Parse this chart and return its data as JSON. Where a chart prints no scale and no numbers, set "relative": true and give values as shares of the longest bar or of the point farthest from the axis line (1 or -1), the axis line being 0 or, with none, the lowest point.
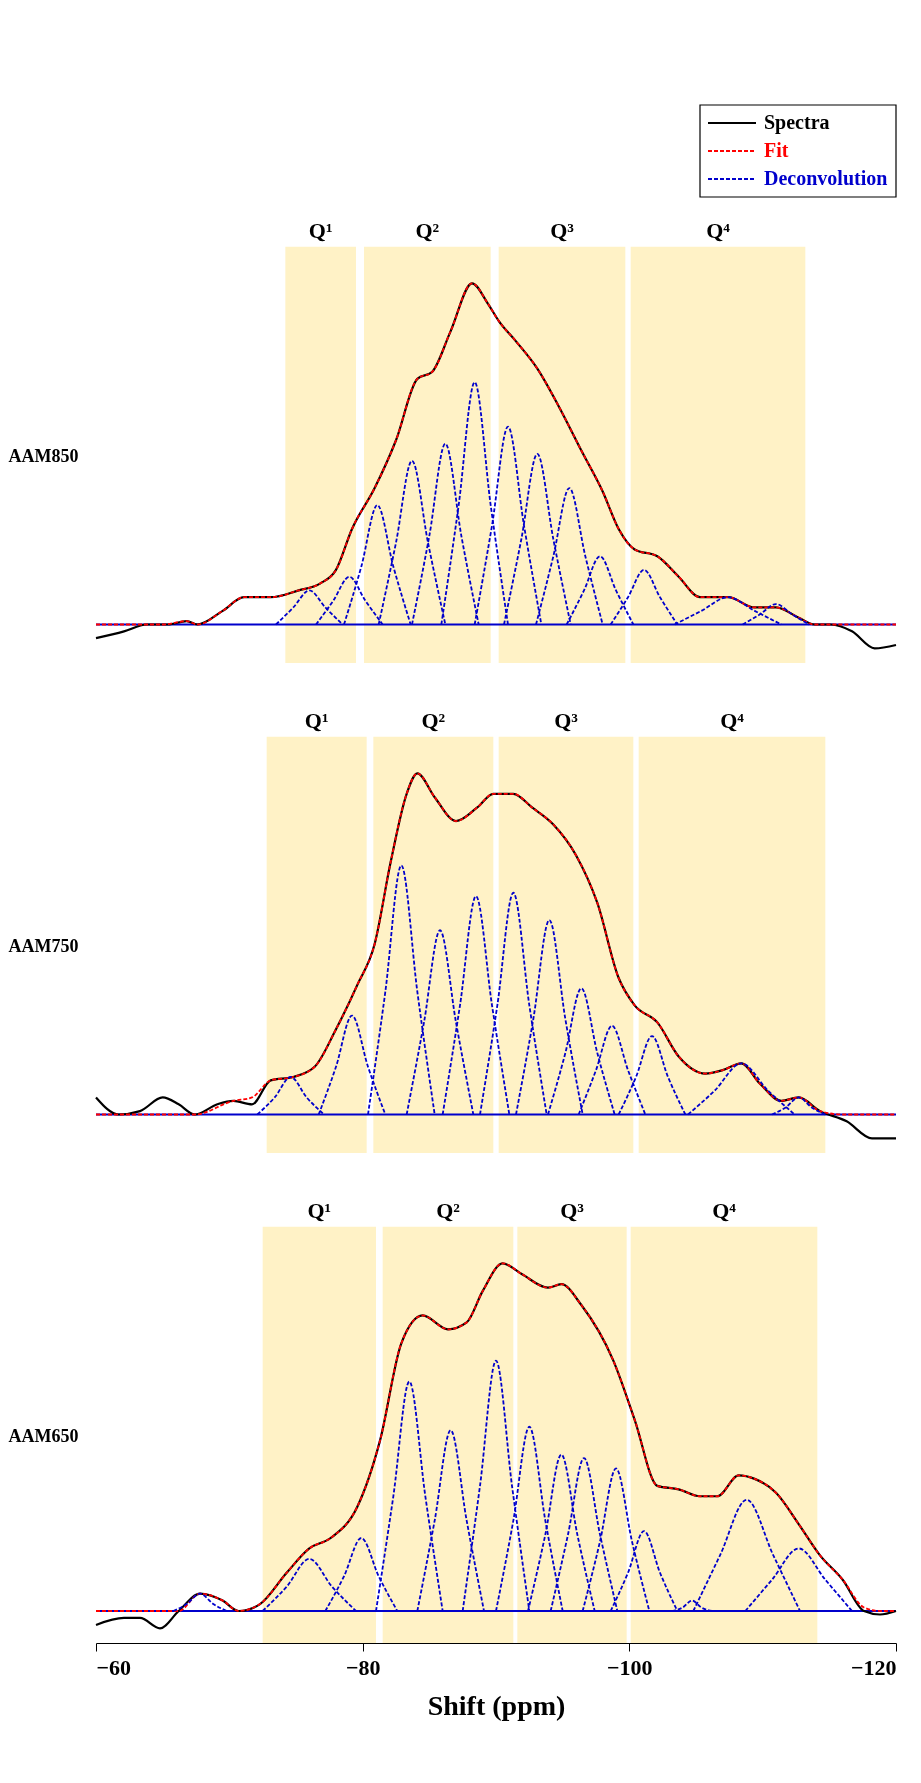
{
  "chart_data": [
    {
      "type": "line",
      "relative": true,
      "ylabel": "AAM850",
      "xlim": [
        -60,
        -120
      ],
      "tick_labels": false,
      "legend": "top right",
      "series": [
        {
          "name": "Spectra",
          "color": "#000000",
          "line_style": "solid",
          "x": [
            -60.0,
            -62.1,
            -63.8,
            -65.4,
            -66.8,
            -67.6,
            -69.5,
            -71.1,
            -73.1,
            -75.2,
            -76.8,
            -78.0,
            -79.2,
            -80.9,
            -82.5,
            -84.1,
            -85.2,
            -86.6,
            -88.2,
            -89.4,
            -90.2,
            -91.5,
            -93.1,
            -94.7,
            -96.4,
            -98.0,
            -99.2,
            -100.4,
            -102.1,
            -103.7,
            -105.3,
            -107.4,
            -109.4,
            -111.0,
            -112.7,
            -113.9,
            -115.1,
            -116.7,
            -118.4,
            -120.0
          ],
          "values": [
            -0.04,
            -0.02,
            0,
            0,
            0.01,
            0,
            0.04,
            0.08,
            0.08,
            0.1,
            0.12,
            0.16,
            0.28,
            0.4,
            0.54,
            0.72,
            0.74,
            0.86,
            1.0,
            0.94,
            0.89,
            0.83,
            0.75,
            0.64,
            0.51,
            0.39,
            0.28,
            0.22,
            0.2,
            0.14,
            0.08,
            0.08,
            0.05,
            0.05,
            0.02,
            0,
            0,
            -0.02,
            -0.07,
            -0.06
          ]
        },
        {
          "name": "Fit",
          "color": "#ff0000",
          "line_style": "dashed",
          "x": [
            -60.0,
            -65.0,
            -66.8,
            -67.6,
            -69.5,
            -71.1,
            -73.1,
            -75.2,
            -76.8,
            -78.0,
            -79.2,
            -80.9,
            -82.5,
            -84.1,
            -85.2,
            -86.6,
            -88.2,
            -89.4,
            -90.2,
            -91.5,
            -93.1,
            -94.7,
            -96.4,
            -98.0,
            -99.2,
            -100.4,
            -102.1,
            -103.7,
            -105.3,
            -107.4,
            -109.4,
            -111.0,
            -112.7,
            -113.9,
            -120.0
          ],
          "values": [
            0,
            0,
            0.01,
            0,
            0.04,
            0.08,
            0.08,
            0.1,
            0.12,
            0.16,
            0.28,
            0.4,
            0.54,
            0.72,
            0.74,
            0.86,
            1.0,
            0.94,
            0.89,
            0.83,
            0.75,
            0.64,
            0.51,
            0.39,
            0.28,
            0.22,
            0.2,
            0.14,
            0.08,
            0.08,
            0.05,
            0.05,
            0.02,
            0,
            0
          ]
        },
        {
          "name": "Deconvolution",
          "color": "#0000cc",
          "line_style": "dashed",
          "x": [
            -73.5,
            -74.8,
            -76.0,
            -77.2,
            -78.5
          ],
          "values": [
            0,
            0.05,
            0.1,
            0.05,
            0
          ]
        },
        {
          "color": "#0000cc",
          "line_style": "dashed",
          "x": [
            -76.5,
            -77.8,
            -79.0,
            -80.2,
            -81.5
          ],
          "values": [
            0,
            0.07,
            0.14,
            0.07,
            0
          ]
        },
        {
          "color": "#0000cc",
          "line_style": "dashed",
          "x": [
            -78.6,
            -79.9,
            -81.1,
            -82.3,
            -83.6
          ],
          "values": [
            0,
            0.17,
            0.35,
            0.17,
            0
          ]
        },
        {
          "color": "#0000cc",
          "line_style": "dashed",
          "x": [
            -81.2,
            -82.5,
            -83.7,
            -84.9,
            -86.2
          ],
          "values": [
            0,
            0.24,
            0.48,
            0.24,
            0
          ]
        },
        {
          "color": "#0000cc",
          "line_style": "dashed",
          "x": [
            -83.7,
            -85.0,
            -86.2,
            -87.4,
            -88.7
          ],
          "values": [
            0,
            0.26,
            0.53,
            0.26,
            0
          ]
        },
        {
          "color": "#0000cc",
          "line_style": "dashed",
          "x": [
            -85.9,
            -87.2,
            -88.4,
            -89.6,
            -90.9
          ],
          "values": [
            0,
            0.35,
            0.71,
            0.35,
            0
          ]
        },
        {
          "color": "#0000cc",
          "line_style": "dashed",
          "x": [
            -88.4,
            -89.7,
            -90.9,
            -92.1,
            -93.4
          ],
          "values": [
            0,
            0.29,
            0.58,
            0.29,
            0
          ]
        },
        {
          "color": "#0000cc",
          "line_style": "dashed",
          "x": [
            -90.6,
            -91.9,
            -93.1,
            -94.3,
            -95.6
          ],
          "values": [
            0,
            0.25,
            0.5,
            0.25,
            0
          ]
        },
        {
          "color": "#0000cc",
          "line_style": "dashed",
          "x": [
            -93.0,
            -94.3,
            -95.5,
            -96.7,
            -98.0
          ],
          "values": [
            0,
            0.2,
            0.4,
            0.2,
            0
          ]
        },
        {
          "color": "#0000cc",
          "line_style": "dashed",
          "x": [
            -95.3,
            -96.6,
            -97.8,
            -99.0,
            -100.3
          ],
          "values": [
            0,
            0.1,
            0.2,
            0.1,
            0
          ]
        },
        {
          "color": "#0000cc",
          "line_style": "dashed",
          "x": [
            -98.6,
            -99.9,
            -101.1,
            -102.3,
            -103.6
          ],
          "values": [
            0,
            0.08,
            0.16,
            0.08,
            0
          ]
        },
        {
          "color": "#0000cc",
          "line_style": "dashed",
          "x": [
            -103.4,
            -105.4,
            -107.4,
            -109.4,
            -111.4
          ],
          "values": [
            0,
            0.04,
            0.08,
            0.04,
            0
          ]
        },
        {
          "color": "#0000cc",
          "line_style": "dashed",
          "x": [
            -108.5,
            -109.8,
            -111.0,
            -112.2,
            -113.5
          ],
          "values": [
            0,
            0.03,
            0.06,
            0.03,
            0
          ]
        }
      ],
      "ref_lines": [
        {
          "axis": "y",
          "value": 0,
          "color": "#0000cc"
        }
      ],
      "bands": [
        {
          "axis": "x",
          "from": -74.2,
          "to": -79.5,
          "label": "Q¹",
          "color": "#fff2c6"
        },
        {
          "axis": "x",
          "from": -80.1,
          "to": -89.6,
          "label": "Q²",
          "color": "#fff2c6"
        },
        {
          "axis": "x",
          "from": -90.2,
          "to": -99.7,
          "label": "Q³",
          "color": "#fff2c6"
        },
        {
          "axis": "x",
          "from": -100.1,
          "to": -113.2,
          "label": "Q⁴",
          "color": "#fff2c6"
        }
      ]
    },
    {
      "type": "line",
      "relative": true,
      "ylabel": "AAM750",
      "xlim": [
        -60,
        -120
      ],
      "tick_labels": false,
      "series": [
        {
          "color": "#000000",
          "line_style": "solid",
          "x": [
            -60.0,
            -61.7,
            -63.3,
            -65.0,
            -66.2,
            -67.4,
            -69.1,
            -70.3,
            -71.7,
            -73.1,
            -74.8,
            -76.4,
            -78.0,
            -79.6,
            -80.9,
            -82.1,
            -83.3,
            -84.1,
            -85.4,
            -87.0,
            -88.6,
            -89.8,
            -91.3,
            -92.7,
            -94.3,
            -96.0,
            -97.6,
            -99.2,
            -100.4,
            -102.1,
            -103.7,
            -105.7,
            -107.0,
            -108.4,
            -109.8,
            -111.4,
            -112.7,
            -114.3,
            -116.3,
            -118.2,
            -120.0
          ],
          "values": [
            0.05,
            0,
            0.01,
            0.05,
            0.03,
            0,
            0.03,
            0.04,
            0.03,
            0.1,
            0.11,
            0.14,
            0.25,
            0.38,
            0.5,
            0.74,
            0.94,
            1.0,
            0.93,
            0.86,
            0.9,
            0.94,
            0.94,
            0.9,
            0.85,
            0.76,
            0.62,
            0.4,
            0.32,
            0.27,
            0.17,
            0.12,
            0.13,
            0.15,
            0.09,
            0.04,
            0.05,
            0.01,
            -0.02,
            -0.07,
            -0.07
          ]
        },
        {
          "color": "#ff0000",
          "line_style": "dashed",
          "x": [
            -60.0,
            -67.4,
            -70.3,
            -71.7,
            -73.1,
            -74.8,
            -76.4,
            -78.0,
            -79.6,
            -80.9,
            -82.1,
            -83.3,
            -84.1,
            -85.4,
            -87.0,
            -88.6,
            -89.8,
            -91.3,
            -92.7,
            -94.3,
            -96.0,
            -97.6,
            -99.2,
            -100.4,
            -102.1,
            -103.7,
            -105.7,
            -107.0,
            -108.4,
            -109.8,
            -111.4,
            -112.7,
            -114.3,
            -116.0,
            -120.0
          ],
          "values": [
            0,
            0,
            0.04,
            0.05,
            0.1,
            0.11,
            0.14,
            0.25,
            0.38,
            0.5,
            0.74,
            0.94,
            1.0,
            0.93,
            0.86,
            0.9,
            0.94,
            0.94,
            0.9,
            0.85,
            0.76,
            0.62,
            0.4,
            0.32,
            0.27,
            0.17,
            0.12,
            0.13,
            0.15,
            0.09,
            0.04,
            0.05,
            0.01,
            0,
            0
          ]
        },
        {
          "color": "#0000cc",
          "line_style": "dashed",
          "x": [
            -72.1,
            -73.4,
            -74.6,
            -75.8,
            -77.1
          ],
          "values": [
            0,
            0.05,
            0.11,
            0.05,
            0
          ]
        },
        {
          "color": "#0000cc",
          "line_style": "dashed",
          "x": [
            -76.7,
            -78.0,
            -79.2,
            -80.4,
            -81.7
          ],
          "values": [
            0,
            0.14,
            0.29,
            0.14,
            0
          ]
        },
        {
          "color": "#0000cc",
          "line_style": "dashed",
          "x": [
            -80.4,
            -81.7,
            -82.9,
            -84.1,
            -85.4
          ],
          "values": [
            0,
            0.36,
            0.73,
            0.36,
            0
          ]
        },
        {
          "color": "#0000cc",
          "line_style": "dashed",
          "x": [
            -83.3,
            -84.6,
            -85.8,
            -87.0,
            -88.3
          ],
          "values": [
            0,
            0.27,
            0.54,
            0.27,
            0
          ]
        },
        {
          "color": "#0000cc",
          "line_style": "dashed",
          "x": [
            -86.0,
            -87.3,
            -88.5,
            -89.7,
            -91.0
          ],
          "values": [
            0,
            0.32,
            0.64,
            0.32,
            0
          ]
        },
        {
          "color": "#0000cc",
          "line_style": "dashed",
          "x": [
            -88.8,
            -90.1,
            -91.3,
            -92.5,
            -93.8
          ],
          "values": [
            0,
            0.32,
            0.65,
            0.32,
            0
          ]
        },
        {
          "color": "#0000cc",
          "line_style": "dashed",
          "x": [
            -91.5,
            -92.8,
            -94.0,
            -95.2,
            -96.5
          ],
          "values": [
            0,
            0.28,
            0.57,
            0.28,
            0
          ]
        },
        {
          "color": "#0000cc",
          "line_style": "dashed",
          "x": [
            -93.9,
            -95.2,
            -96.4,
            -97.6,
            -98.9
          ],
          "values": [
            0,
            0.18,
            0.37,
            0.18,
            0
          ]
        },
        {
          "color": "#0000cc",
          "line_style": "dashed",
          "x": [
            -96.2,
            -97.5,
            -98.7,
            -99.9,
            -101.2
          ],
          "values": [
            0,
            0.13,
            0.26,
            0.13,
            0
          ]
        },
        {
          "color": "#0000cc",
          "line_style": "dashed",
          "x": [
            -99.2,
            -100.5,
            -101.7,
            -102.9,
            -104.2
          ],
          "values": [
            0,
            0.11,
            0.23,
            0.11,
            0
          ]
        },
        {
          "color": "#0000cc",
          "line_style": "dashed",
          "x": [
            -104.4,
            -106.4,
            -108.4,
            -110.4,
            -112.4
          ],
          "values": [
            0,
            0.07,
            0.15,
            0.07,
            0
          ]
        },
        {
          "color": "#0000cc",
          "line_style": "dashed",
          "x": [
            -110.7,
            -111.7,
            -112.7,
            -113.7,
            -114.7
          ],
          "values": [
            0,
            0.02,
            0.05,
            0.02,
            0
          ]
        }
      ],
      "ref_lines": [
        {
          "axis": "y",
          "value": 0,
          "color": "#0000cc"
        }
      ],
      "bands": [
        {
          "axis": "x",
          "from": -72.8,
          "to": -80.3,
          "label": "Q¹",
          "color": "#fff2c6"
        },
        {
          "axis": "x",
          "from": -80.8,
          "to": -89.8,
          "label": "Q²",
          "color": "#fff2c6"
        },
        {
          "axis": "x",
          "from": -90.2,
          "to": -100.3,
          "label": "Q³",
          "color": "#fff2c6"
        },
        {
          "axis": "x",
          "from": -100.7,
          "to": -114.7,
          "label": "Q⁴",
          "color": "#fff2c6"
        }
      ]
    },
    {
      "type": "line",
      "relative": true,
      "ylabel": "AAM650",
      "xlabel": "Shift (ppm)",
      "xlim": [
        -60,
        -120
      ],
      "xticks": [
        -60,
        -80,
        -100,
        -120
      ],
      "tick_labels": "x",
      "series": [
        {
          "color": "#000000",
          "line_style": "solid",
          "x": [
            -60.0,
            -62.1,
            -63.3,
            -64.8,
            -66.2,
            -67.8,
            -69.5,
            -70.7,
            -72.3,
            -74.3,
            -76.0,
            -77.6,
            -79.6,
            -81.3,
            -82.9,
            -84.5,
            -86.4,
            -87.8,
            -89.0,
            -90.5,
            -91.9,
            -93.9,
            -94.9,
            -96.4,
            -98.8,
            -100.4,
            -102.1,
            -103.7,
            -105.3,
            -106.6,
            -108.2,
            -109.4,
            -111.0,
            -112.7,
            -114.3,
            -116.0,
            -117.6,
            -118.8,
            -120.0
          ],
          "values": [
            -0.04,
            -0.02,
            -0.02,
            -0.05,
            0,
            0.05,
            0.03,
            0,
            0.02,
            0.11,
            0.18,
            0.21,
            0.3,
            0.49,
            0.77,
            0.85,
            0.81,
            0.83,
            0.92,
            1.0,
            0.97,
            0.93,
            0.94,
            0.88,
            0.72,
            0.55,
            0.36,
            0.35,
            0.33,
            0.33,
            0.39,
            0.38,
            0.34,
            0.25,
            0.16,
            0.09,
            0,
            -0.01,
            0
          ]
        },
        {
          "color": "#ff0000",
          "line_style": "dashed",
          "x": [
            -60.0,
            -65.5,
            -66.2,
            -67.8,
            -69.5,
            -70.7,
            -72.3,
            -74.3,
            -76.0,
            -77.6,
            -79.6,
            -81.3,
            -82.9,
            -84.5,
            -86.4,
            -87.8,
            -89.0,
            -90.5,
            -91.9,
            -93.9,
            -94.9,
            -96.4,
            -98.8,
            -100.4,
            -102.1,
            -103.7,
            -105.3,
            -106.6,
            -108.2,
            -109.4,
            -111.0,
            -112.7,
            -114.3,
            -116.0,
            -117.6,
            -118.8,
            -120.0
          ],
          "values": [
            0,
            0,
            0,
            0.05,
            0.03,
            0,
            0.02,
            0.11,
            0.18,
            0.21,
            0.3,
            0.49,
            0.77,
            0.85,
            0.81,
            0.83,
            0.92,
            1.0,
            0.97,
            0.93,
            0.94,
            0.88,
            0.72,
            0.55,
            0.36,
            0.35,
            0.33,
            0.33,
            0.39,
            0.38,
            0.34,
            0.25,
            0.16,
            0.09,
            0.01,
            0,
            0
          ]
        },
        {
          "color": "#0000cc",
          "line_style": "dashed",
          "x": [
            -65.8,
            -66.8,
            -67.8,
            -68.8,
            -69.8
          ],
          "values": [
            0,
            0.02,
            0.05,
            0.02,
            0
          ]
        },
        {
          "color": "#0000cc",
          "line_style": "dashed",
          "x": [
            -72.5,
            -74.3,
            -76.0,
            -77.7,
            -79.5
          ],
          "values": [
            0,
            0.07,
            0.15,
            0.07,
            0
          ]
        },
        {
          "color": "#0000cc",
          "line_style": "dashed",
          "x": [
            -77.2,
            -78.6,
            -79.9,
            -81.2,
            -82.6
          ],
          "values": [
            0,
            0.1,
            0.21,
            0.1,
            0
          ]
        },
        {
          "color": "#0000cc",
          "line_style": "dashed",
          "x": [
            -81.0,
            -82.3,
            -83.5,
            -84.7,
            -86.0
          ],
          "values": [
            0,
            0.33,
            0.66,
            0.33,
            0
          ]
        },
        {
          "color": "#0000cc",
          "line_style": "dashed",
          "x": [
            -84.1,
            -85.4,
            -86.6,
            -87.8,
            -89.1
          ],
          "values": [
            0,
            0.26,
            0.52,
            0.26,
            0
          ]
        },
        {
          "color": "#0000cc",
          "line_style": "dashed",
          "x": [
            -87.5,
            -88.8,
            -90.0,
            -91.2,
            -92.5
          ],
          "values": [
            0,
            0.36,
            0.72,
            0.36,
            0
          ]
        },
        {
          "color": "#0000cc",
          "line_style": "dashed",
          "x": [
            -90.0,
            -91.3,
            -92.5,
            -93.7,
            -95.0
          ],
          "values": [
            0,
            0.26,
            0.53,
            0.26,
            0
          ]
        },
        {
          "color": "#0000cc",
          "line_style": "dashed",
          "x": [
            -92.4,
            -93.7,
            -94.9,
            -96.1,
            -97.4
          ],
          "values": [
            0,
            0.22,
            0.45,
            0.22,
            0
          ]
        },
        {
          "color": "#0000cc",
          "line_style": "dashed",
          "x": [
            -94.1,
            -95.4,
            -96.6,
            -97.8,
            -99.1
          ],
          "values": [
            0,
            0.22,
            0.44,
            0.22,
            0
          ]
        },
        {
          "color": "#0000cc",
          "line_style": "dashed",
          "x": [
            -96.5,
            -97.8,
            -99.0,
            -100.2,
            -101.5
          ],
          "values": [
            0,
            0.2,
            0.41,
            0.2,
            0
          ]
        },
        {
          "color": "#0000cc",
          "line_style": "dashed",
          "x": [
            -98.6,
            -99.9,
            -101.1,
            -102.3,
            -103.6
          ],
          "values": [
            0,
            0.11,
            0.23,
            0.11,
            0
          ]
        },
        {
          "color": "#0000cc",
          "line_style": "dashed",
          "x": [
            -103.2,
            -104.0,
            -104.7,
            -105.4,
            -106.2
          ],
          "values": [
            0,
            0.01,
            0.03,
            0.01,
            0
          ]
        },
        {
          "color": "#0000cc",
          "line_style": "dashed",
          "x": [
            -104.8,
            -106.8,
            -108.8,
            -110.8,
            -112.8
          ],
          "values": [
            0,
            0.16,
            0.32,
            0.16,
            0
          ]
        },
        {
          "color": "#0000cc",
          "line_style": "dashed",
          "x": [
            -108.7,
            -110.7,
            -112.7,
            -114.7,
            -116.7
          ],
          "values": [
            0,
            0.09,
            0.18,
            0.09,
            0
          ]
        }
      ],
      "ref_lines": [
        {
          "axis": "y",
          "value": 0,
          "color": "#0000cc"
        }
      ],
      "bands": [
        {
          "axis": "x",
          "from": -72.5,
          "to": -81.0,
          "label": "Q¹",
          "color": "#fff2c6"
        },
        {
          "axis": "x",
          "from": -81.5,
          "to": -91.3,
          "label": "Q²",
          "color": "#fff2c6"
        },
        {
          "axis": "x",
          "from": -91.6,
          "to": -99.8,
          "label": "Q³",
          "color": "#fff2c6"
        },
        {
          "axis": "x",
          "from": -100.1,
          "to": -114.1,
          "label": "Q⁴",
          "color": "#fff2c6"
        }
      ]
    }
  ]
}
